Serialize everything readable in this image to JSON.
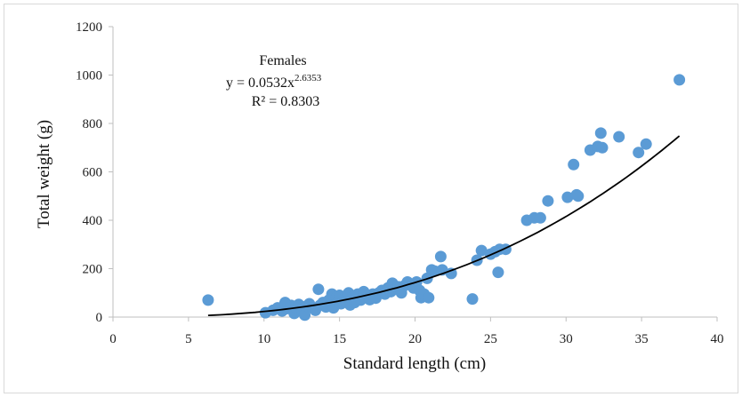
{
  "chart_data": {
    "type": "scatter",
    "xlabel": "Standard length (cm)",
    "ylabel": "Total weight (g)",
    "xlim": [
      0,
      40
    ],
    "ylim": [
      0,
      1200
    ],
    "xticks": [
      "0",
      "5",
      "10",
      "15",
      "20",
      "25",
      "30",
      "35",
      "40"
    ],
    "yticks": [
      "0",
      "200",
      "400",
      "600",
      "800",
      "1000",
      "1200"
    ],
    "grid": false,
    "marker_color": "#5b9bd5",
    "trendline_color": "#000000",
    "annotation": {
      "title": "Females",
      "equation_prefix": "y = 0.0532x",
      "equation_exponent": "2.6353",
      "r_squared": "R² = 0.8303"
    },
    "trendline": {
      "type": "power",
      "a": 0.0532,
      "b": 2.6353,
      "x_range": [
        6.3,
        37.5
      ]
    },
    "series": [
      {
        "points": [
          [
            6.3,
            70
          ],
          [
            10.1,
            18
          ],
          [
            10.6,
            28
          ],
          [
            10.9,
            38
          ],
          [
            11.2,
            25
          ],
          [
            11.4,
            60
          ],
          [
            11.5,
            35
          ],
          [
            11.8,
            48
          ],
          [
            12.0,
            15
          ],
          [
            12.1,
            40
          ],
          [
            12.3,
            52
          ],
          [
            12.5,
            30
          ],
          [
            12.7,
            8
          ],
          [
            12.8,
            45
          ],
          [
            13.0,
            55
          ],
          [
            13.2,
            38
          ],
          [
            13.4,
            28
          ],
          [
            13.6,
            115
          ],
          [
            13.7,
            48
          ],
          [
            13.9,
            60
          ],
          [
            14.1,
            42
          ],
          [
            14.3,
            70
          ],
          [
            14.4,
            52
          ],
          [
            14.5,
            95
          ],
          [
            14.6,
            38
          ],
          [
            14.8,
            80
          ],
          [
            14.9,
            62
          ],
          [
            15.0,
            90
          ],
          [
            15.1,
            55
          ],
          [
            15.3,
            75
          ],
          [
            15.4,
            65
          ],
          [
            15.6,
            100
          ],
          [
            15.7,
            50
          ],
          [
            15.9,
            85
          ],
          [
            16.0,
            60
          ],
          [
            16.2,
            95
          ],
          [
            16.4,
            70
          ],
          [
            16.6,
            105
          ],
          [
            16.7,
            80
          ],
          [
            16.9,
            88
          ],
          [
            17.0,
            72
          ],
          [
            17.2,
            95
          ],
          [
            17.4,
            78
          ],
          [
            17.6,
            100
          ],
          [
            17.8,
            110
          ],
          [
            18.0,
            95
          ],
          [
            18.2,
            120
          ],
          [
            18.4,
            105
          ],
          [
            18.5,
            140
          ],
          [
            18.7,
            115
          ],
          [
            18.9,
            125
          ],
          [
            19.1,
            100
          ],
          [
            19.3,
            130
          ],
          [
            19.5,
            145
          ],
          [
            19.7,
            135
          ],
          [
            19.9,
            120
          ],
          [
            20.1,
            145
          ],
          [
            20.3,
            110
          ],
          [
            20.4,
            80
          ],
          [
            20.6,
            95
          ],
          [
            20.8,
            160
          ],
          [
            20.9,
            80
          ],
          [
            21.1,
            195
          ],
          [
            21.3,
            190
          ],
          [
            21.7,
            250
          ],
          [
            21.8,
            195
          ],
          [
            22.4,
            180
          ],
          [
            23.8,
            75
          ],
          [
            24.1,
            235
          ],
          [
            24.4,
            275
          ],
          [
            25.0,
            260
          ],
          [
            25.3,
            270
          ],
          [
            25.5,
            185
          ],
          [
            25.6,
            280
          ],
          [
            26.0,
            280
          ],
          [
            27.4,
            400
          ],
          [
            27.9,
            410
          ],
          [
            28.3,
            410
          ],
          [
            28.8,
            480
          ],
          [
            30.1,
            495
          ],
          [
            30.5,
            630
          ],
          [
            30.7,
            505
          ],
          [
            30.8,
            500
          ],
          [
            31.6,
            690
          ],
          [
            32.1,
            705
          ],
          [
            32.3,
            760
          ],
          [
            32.4,
            700
          ],
          [
            33.5,
            745
          ],
          [
            34.8,
            680
          ],
          [
            35.3,
            715
          ],
          [
            37.5,
            980
          ]
        ]
      }
    ]
  }
}
